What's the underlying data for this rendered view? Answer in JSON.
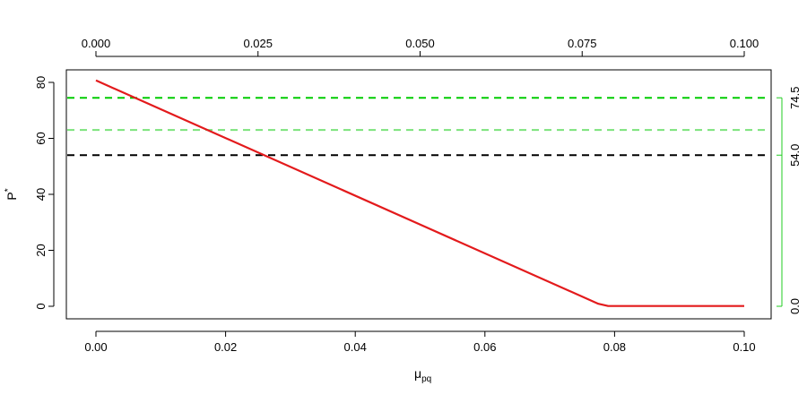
{
  "chart_data": {
    "type": "line",
    "xlabel": "μ",
    "xlabel_sub": "pq",
    "ylabel": "P",
    "ylabel_sup": "*",
    "xlim": [
      0,
      0.1
    ],
    "ylim": [
      0,
      80
    ],
    "x_ticks": [
      "0.00",
      "0.02",
      "0.04",
      "0.06",
      "0.08",
      "0.10"
    ],
    "y_ticks": [
      "0",
      "20",
      "40",
      "60",
      "80"
    ],
    "top_ticks": [
      "0.000",
      "0.025",
      "0.050",
      "0.075",
      "0.100"
    ],
    "right_ticks": [
      "0.0",
      "54.0",
      "74.5"
    ],
    "grid": false,
    "series": [
      {
        "color": "#e31a1c",
        "x": [
          0,
          0.0775,
          0.079,
          0.1
        ],
        "y": [
          80.7,
          0.9,
          0.1,
          0.1
        ]
      }
    ],
    "hlines": [
      {
        "y": 74.5,
        "color": "#00cc00",
        "style": "dashed"
      },
      {
        "y": 63.0,
        "color": "#7be37b",
        "style": "dashed"
      },
      {
        "y": 54.0,
        "color": "#000000",
        "style": "dashed"
      }
    ],
    "right_axis_color": "#22cc22"
  }
}
